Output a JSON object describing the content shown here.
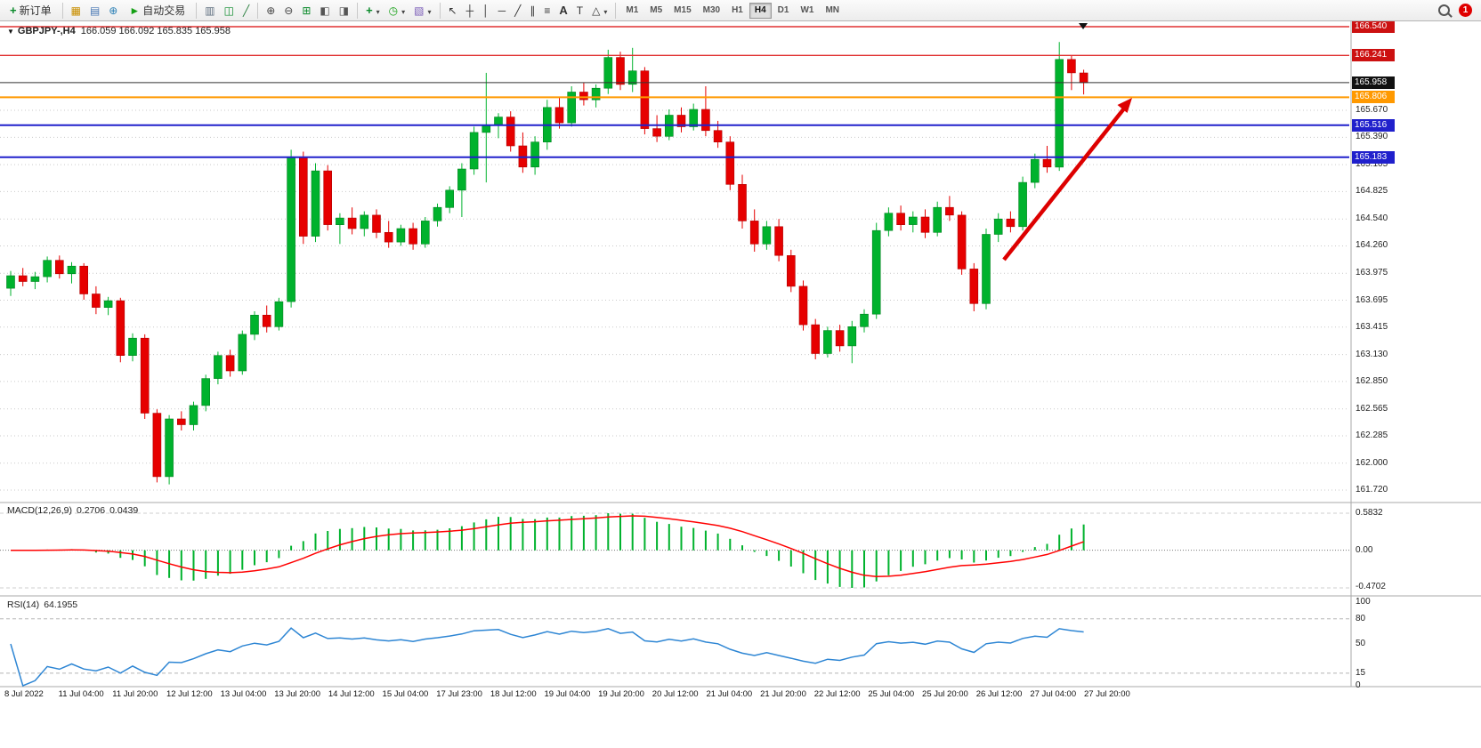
{
  "toolbar": {
    "new_order_label": "新订单",
    "autotrade_label": "自动交易",
    "timeframes": [
      "M1",
      "M5",
      "M15",
      "M30",
      "H1",
      "H4",
      "D1",
      "W1",
      "MN"
    ],
    "active_timeframe": "H4",
    "notification_count": "1"
  },
  "chart": {
    "title": "GBPJPY-,H4",
    "ohlc_text": "166.059 166.092 165.835 165.958"
  },
  "macd": {
    "title": "MACD(12,26,9)",
    "value_main": "0.2706",
    "value_signal": "0.0439",
    "scale_max": "0.5832",
    "scale_zero": "0.00",
    "scale_min": "-0.4702"
  },
  "rsi": {
    "title": "RSI(14)",
    "value": "64.1955"
  },
  "chart_data": {
    "type": "candlestick",
    "symbol": "GBPJPY-",
    "timeframe": "H4",
    "current_bar": {
      "open": 166.059,
      "high": 166.092,
      "low": 165.835,
      "close": 165.958
    },
    "bull_color": "#00b22d",
    "bear_color": "#e60000",
    "price_ticks": [
      "165.670",
      "165.390",
      "165.105",
      "164.825",
      "164.540",
      "164.260",
      "163.975",
      "163.695",
      "163.415",
      "163.130",
      "162.850",
      "162.565",
      "162.285",
      "162.000",
      "161.720"
    ],
    "hlines": [
      {
        "price": 166.54,
        "color": "#e03030",
        "label": "166.540",
        "label_bg": "#cc1111"
      },
      {
        "price": 166.241,
        "color": "#e03030",
        "label": "166.241",
        "label_bg": "#cc1111"
      },
      {
        "price": 165.958,
        "color": "#333333",
        "label": "165.958",
        "label_bg": "#111111"
      },
      {
        "price": 165.806,
        "color": "#ff9900",
        "label": "165.806",
        "label_bg": "#ff9900"
      },
      {
        "price": 165.516,
        "color": "#2020cc",
        "label": "165.516",
        "label_bg": "#2020cc"
      },
      {
        "price": 165.183,
        "color": "#2020cc",
        "label": "165.183",
        "label_bg": "#2020cc"
      }
    ],
    "time_labels": [
      "8 Jul 2022",
      "11 Jul 04:00",
      "11 Jul 20:00",
      "12 Jul 12:00",
      "13 Jul 04:00",
      "13 Jul 20:00",
      "14 Jul 12:00",
      "15 Jul 04:00",
      "17 Jul 23:00",
      "18 Jul 12:00",
      "19 Jul 04:00",
      "19 Jul 20:00",
      "20 Jul 12:00",
      "21 Jul 04:00",
      "21 Jul 20:00",
      "22 Jul 12:00",
      "25 Jul 04:00",
      "25 Jul 20:00",
      "26 Jul 12:00",
      "27 Jul 04:00",
      "27 Jul 20:00"
    ],
    "candles": [
      [
        163.82,
        164.0,
        163.74,
        163.95
      ],
      [
        163.95,
        164.03,
        163.84,
        163.89
      ],
      [
        163.89,
        163.99,
        163.81,
        163.94
      ],
      [
        163.94,
        164.15,
        163.88,
        164.11
      ],
      [
        164.11,
        164.16,
        163.92,
        163.97
      ],
      [
        163.97,
        164.09,
        163.87,
        164.05
      ],
      [
        164.05,
        164.08,
        163.7,
        163.76
      ],
      [
        163.76,
        163.84,
        163.55,
        163.62
      ],
      [
        163.62,
        163.73,
        163.54,
        163.69
      ],
      [
        163.69,
        163.72,
        163.05,
        163.12
      ],
      [
        163.12,
        163.35,
        163.06,
        163.3
      ],
      [
        163.3,
        163.34,
        162.46,
        162.52
      ],
      [
        162.52,
        162.56,
        161.8,
        161.86
      ],
      [
        161.86,
        162.5,
        161.78,
        162.46
      ],
      [
        162.46,
        162.54,
        162.34,
        162.4
      ],
      [
        162.4,
        162.64,
        162.34,
        162.6
      ],
      [
        162.6,
        162.92,
        162.54,
        162.88
      ],
      [
        162.88,
        163.16,
        162.82,
        163.12
      ],
      [
        163.12,
        163.18,
        162.9,
        162.96
      ],
      [
        162.96,
        163.38,
        162.92,
        163.34
      ],
      [
        163.34,
        163.58,
        163.28,
        163.54
      ],
      [
        163.54,
        163.64,
        163.36,
        163.42
      ],
      [
        163.42,
        163.72,
        163.38,
        163.68
      ],
      [
        163.68,
        165.26,
        163.62,
        165.18
      ],
      [
        165.18,
        165.24,
        164.28,
        164.36
      ],
      [
        164.36,
        165.12,
        164.3,
        165.04
      ],
      [
        165.04,
        165.1,
        164.42,
        164.48
      ],
      [
        164.48,
        164.6,
        164.28,
        164.55
      ],
      [
        164.55,
        164.66,
        164.38,
        164.44
      ],
      [
        164.44,
        164.62,
        164.36,
        164.58
      ],
      [
        164.58,
        164.64,
        164.34,
        164.4
      ],
      [
        164.4,
        164.52,
        164.24,
        164.3
      ],
      [
        164.3,
        164.48,
        164.26,
        164.44
      ],
      [
        164.44,
        164.5,
        164.22,
        164.28
      ],
      [
        164.28,
        164.56,
        164.24,
        164.52
      ],
      [
        164.52,
        164.7,
        164.46,
        164.66
      ],
      [
        164.66,
        164.88,
        164.6,
        164.84
      ],
      [
        164.84,
        165.12,
        164.56,
        165.06
      ],
      [
        165.06,
        165.5,
        165.0,
        165.44
      ],
      [
        165.44,
        166.06,
        164.92,
        165.52
      ],
      [
        165.52,
        165.64,
        165.38,
        165.6
      ],
      [
        165.6,
        165.66,
        165.24,
        165.3
      ],
      [
        165.3,
        165.44,
        165.02,
        165.08
      ],
      [
        165.08,
        165.4,
        165.0,
        165.34
      ],
      [
        165.34,
        165.78,
        165.26,
        165.7
      ],
      [
        165.7,
        165.8,
        165.48,
        165.54
      ],
      [
        165.54,
        165.92,
        165.5,
        165.86
      ],
      [
        165.86,
        165.96,
        165.72,
        165.78
      ],
      [
        165.78,
        165.94,
        165.7,
        165.9
      ],
      [
        165.9,
        166.3,
        165.84,
        166.22
      ],
      [
        166.22,
        166.28,
        165.88,
        165.94
      ],
      [
        165.94,
        166.32,
        165.86,
        166.08
      ],
      [
        166.08,
        166.12,
        165.42,
        165.48
      ],
      [
        165.48,
        165.62,
        165.34,
        165.4
      ],
      [
        165.4,
        165.68,
        165.36,
        165.62
      ],
      [
        165.62,
        165.7,
        165.44,
        165.5
      ],
      [
        165.5,
        165.74,
        165.46,
        165.68
      ],
      [
        165.68,
        165.92,
        165.4,
        165.46
      ],
      [
        165.46,
        165.56,
        165.28,
        165.34
      ],
      [
        165.34,
        165.4,
        164.84,
        164.9
      ],
      [
        164.9,
        165.0,
        164.44,
        164.52
      ],
      [
        164.52,
        164.64,
        164.2,
        164.28
      ],
      [
        164.28,
        164.52,
        164.22,
        164.46
      ],
      [
        164.46,
        164.54,
        164.1,
        164.16
      ],
      [
        164.16,
        164.22,
        163.78,
        163.84
      ],
      [
        163.84,
        163.9,
        163.38,
        163.44
      ],
      [
        163.44,
        163.5,
        163.08,
        163.14
      ],
      [
        163.14,
        163.42,
        163.1,
        163.38
      ],
      [
        163.38,
        163.44,
        163.16,
        163.22
      ],
      [
        163.22,
        163.48,
        163.04,
        163.42
      ],
      [
        163.42,
        163.6,
        163.36,
        163.55
      ],
      [
        163.55,
        164.5,
        163.5,
        164.42
      ],
      [
        164.42,
        164.66,
        164.36,
        164.6
      ],
      [
        164.6,
        164.68,
        164.42,
        164.48
      ],
      [
        164.48,
        164.62,
        164.4,
        164.56
      ],
      [
        164.56,
        164.64,
        164.34,
        164.4
      ],
      [
        164.4,
        164.72,
        164.36,
        164.66
      ],
      [
        164.66,
        164.78,
        164.52,
        164.58
      ],
      [
        164.58,
        164.62,
        163.96,
        164.02
      ],
      [
        164.02,
        164.08,
        163.58,
        163.66
      ],
      [
        163.66,
        164.44,
        163.6,
        164.38
      ],
      [
        164.38,
        164.6,
        164.3,
        164.54
      ],
      [
        164.54,
        164.62,
        164.4,
        164.46
      ],
      [
        164.46,
        164.98,
        164.42,
        164.92
      ],
      [
        164.92,
        165.22,
        164.86,
        165.16
      ],
      [
        165.16,
        165.3,
        165.02,
        165.08
      ],
      [
        165.08,
        166.38,
        165.04,
        166.2
      ],
      [
        166.2,
        166.24,
        165.88,
        166.06
      ],
      [
        166.059,
        166.092,
        165.835,
        165.958
      ]
    ],
    "indicators": [
      {
        "name": "MACD",
        "params": [
          12,
          26,
          9
        ],
        "display_values": [
          0.2706,
          0.0439
        ],
        "scale": [
          0.5832,
          0,
          -0.4702
        ],
        "histogram_color": "#00b22d",
        "signal_color": "#ff0000"
      },
      {
        "name": "RSI",
        "params": [
          14
        ],
        "display_value": 64.1955,
        "levels": [
          100,
          80,
          50,
          15,
          0
        ],
        "line_color": "#2e86d4"
      }
    ],
    "annotations": [
      {
        "type": "arrow",
        "direction": "up-right",
        "color": "#dd0000"
      }
    ]
  }
}
